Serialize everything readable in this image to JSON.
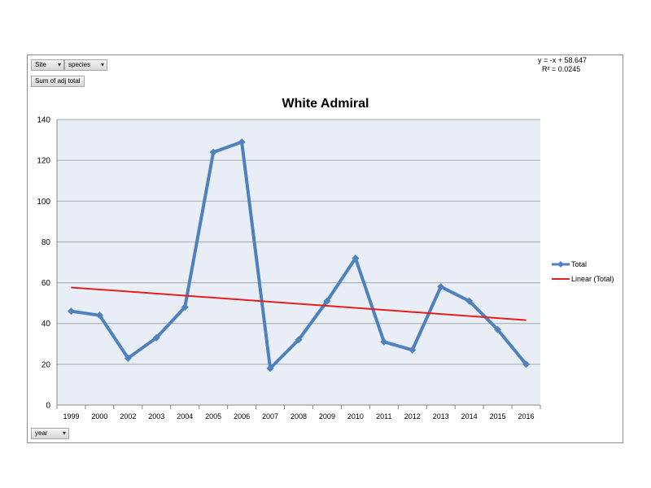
{
  "chart_data": {
    "type": "line",
    "title": "White Admiral",
    "xlabel": "",
    "ylabel": "",
    "categories": [
      "1999",
      "2000",
      "2002",
      "2003",
      "2004",
      "2005",
      "2006",
      "2007",
      "2008",
      "2009",
      "2010",
      "2011",
      "2012",
      "2013",
      "2014",
      "2015",
      "2016"
    ],
    "series": [
      {
        "name": "Total",
        "color": "#4f81bd",
        "marker": "diamond",
        "values": [
          46,
          44,
          23,
          33,
          48,
          124,
          129,
          18,
          32,
          51,
          72,
          31,
          27,
          58,
          51,
          37,
          20
        ]
      }
    ],
    "trendline": {
      "name": "Linear (Total)",
      "color": "#e21f1f",
      "type": "linear",
      "slope": -1,
      "intercept": 58.647,
      "equation": "y = -x + 58.647",
      "r2": "R² = 0.0245"
    },
    "ylim": [
      0,
      140
    ],
    "yticks": [
      0,
      20,
      40,
      60,
      80,
      100,
      120,
      140
    ],
    "grid": true,
    "legend": "right"
  },
  "pivot_buttons": {
    "site": "Site",
    "species": "species",
    "sum": "Sum of adj total",
    "year": "year"
  },
  "colors": {
    "plot_background": "#e9eef6",
    "gridline": "#a6a6a6"
  }
}
